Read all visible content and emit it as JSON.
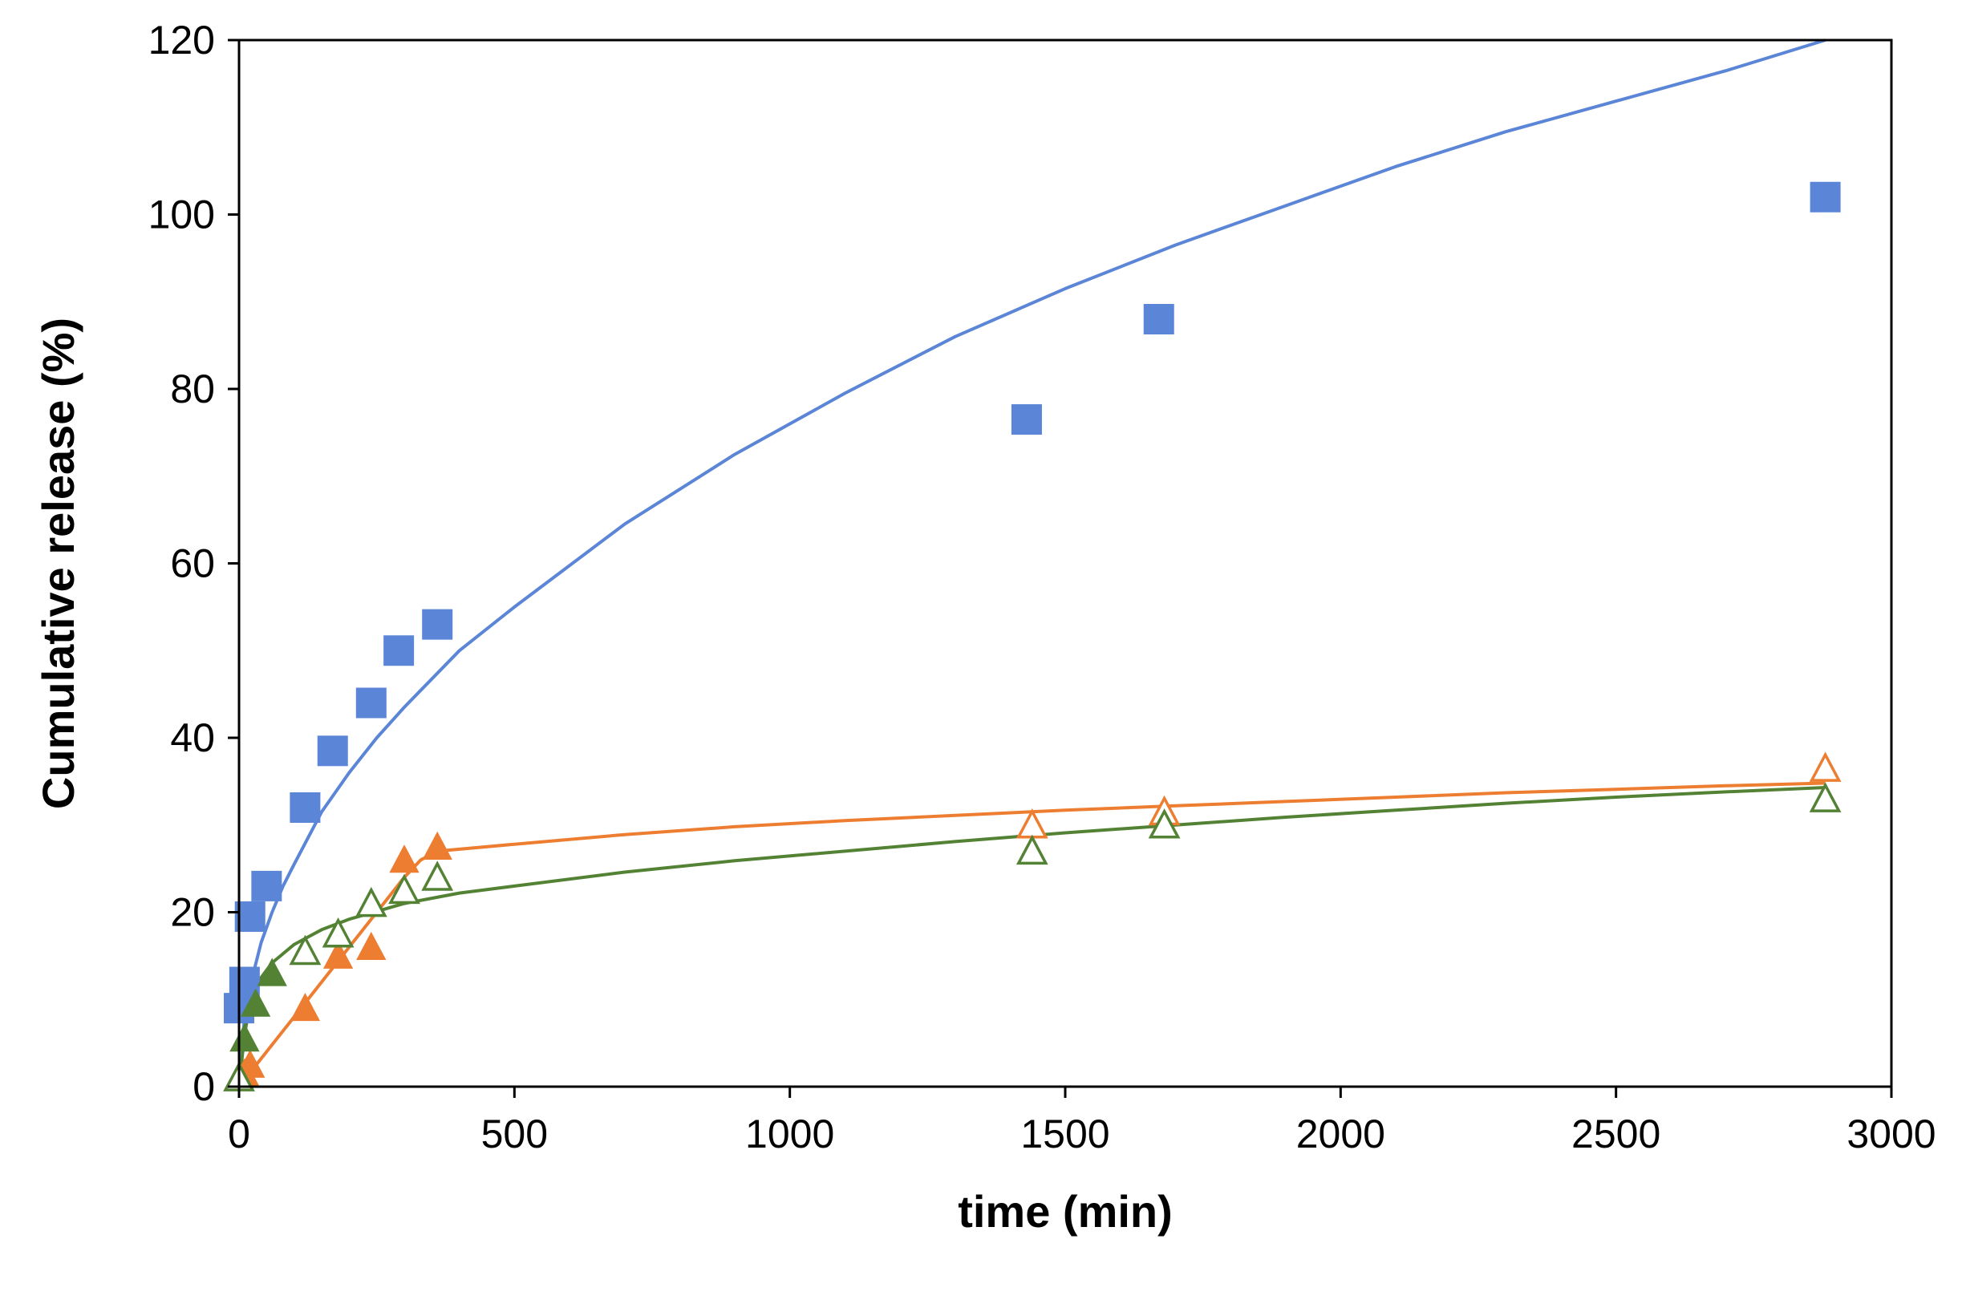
{
  "chart_data": {
    "type": "scatter",
    "title": "",
    "xlabel": "time (min)",
    "ylabel": "Cumulative release (%)",
    "xlim": [
      0,
      3000
    ],
    "ylim": [
      0,
      120
    ],
    "xticks": [
      0,
      500,
      1000,
      1500,
      2000,
      2500,
      3000
    ],
    "yticks": [
      0,
      20,
      40,
      60,
      80,
      100,
      120
    ],
    "grid": false,
    "legend": "none",
    "series": [
      {
        "name": "blue squares (data)",
        "kind": "points",
        "marker": "square-filled",
        "color": "#5B85D6",
        "x": [
          0,
          10,
          20,
          50,
          120,
          170,
          240,
          290,
          360,
          1430,
          1670,
          2880
        ],
        "y": [
          9,
          12,
          19.5,
          23,
          32,
          38.5,
          44,
          50,
          53,
          76.5,
          88,
          102
        ]
      },
      {
        "name": "blue fit",
        "kind": "line",
        "color": "#5B85D6",
        "x": [
          0,
          10,
          20,
          40,
          60,
          80,
          100,
          150,
          200,
          250,
          300,
          400,
          500,
          700,
          900,
          1100,
          1300,
          1500,
          1700,
          1900,
          2100,
          2300,
          2500,
          2700,
          2880
        ],
        "y": [
          0,
          8,
          11.5,
          16.5,
          20,
          23,
          25.5,
          31.5,
          36,
          40,
          43.5,
          50,
          55,
          64.5,
          72.5,
          79.5,
          86,
          91.5,
          96.5,
          101,
          105.5,
          109.5,
          113,
          116.5,
          120
        ]
      },
      {
        "name": "orange filled triangles (data)",
        "kind": "points",
        "marker": "triangle-filled",
        "color": "#ED7D31",
        "x": [
          0,
          10,
          20,
          120,
          180,
          240,
          300,
          360
        ],
        "y": [
          1,
          1.5,
          2.5,
          9,
          15,
          16,
          26,
          27.5
        ]
      },
      {
        "name": "orange open triangles (data)",
        "kind": "points",
        "marker": "triangle-open",
        "color": "#ED7D31",
        "x": [
          1440,
          1680,
          2880
        ],
        "y": [
          30,
          31.5,
          36.5
        ]
      },
      {
        "name": "orange fit",
        "kind": "line",
        "color": "#ED7D31",
        "x": [
          0,
          50,
          100,
          150,
          200,
          250,
          300,
          330,
          360,
          500,
          700,
          900,
          1100,
          1300,
          1500,
          1700,
          1900,
          2100,
          2300,
          2500,
          2700,
          2880
        ],
        "y": [
          0,
          4,
          8,
          12,
          16,
          20,
          24,
          26,
          27,
          27.8,
          28.9,
          29.8,
          30.5,
          31.1,
          31.7,
          32.2,
          32.7,
          33.2,
          33.7,
          34.1,
          34.5,
          34.8
        ]
      },
      {
        "name": "green filled triangles (data)",
        "kind": "points",
        "marker": "triangle-filled",
        "color": "#548235",
        "x": [
          10,
          30,
          60
        ],
        "y": [
          5.5,
          9.5,
          13
        ]
      },
      {
        "name": "green open triangles (data)",
        "kind": "points",
        "marker": "triangle-open",
        "color": "#548235",
        "x": [
          0,
          120,
          180,
          240,
          300,
          360,
          1440,
          1680,
          2880
        ],
        "y": [
          1,
          15.5,
          17.5,
          21,
          22.5,
          24,
          27,
          30,
          33
        ]
      },
      {
        "name": "green fit",
        "kind": "line",
        "color": "#548235",
        "x": [
          0,
          10,
          20,
          40,
          60,
          100,
          150,
          200,
          250,
          300,
          400,
          500,
          700,
          900,
          1100,
          1300,
          1500,
          1700,
          1900,
          2100,
          2300,
          2500,
          2700,
          2880
        ],
        "y": [
          0,
          6,
          9.5,
          12.5,
          14.2,
          16.3,
          18,
          19.2,
          20.1,
          21,
          22.2,
          23,
          24.6,
          25.9,
          27,
          28.1,
          29.1,
          30,
          30.9,
          31.7,
          32.5,
          33.2,
          33.8,
          34.3
        ]
      }
    ]
  }
}
